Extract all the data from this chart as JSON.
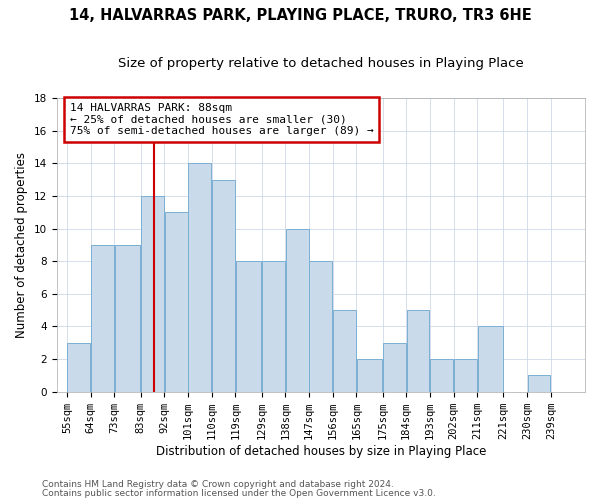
{
  "title": "14, HALVARRAS PARK, PLAYING PLACE, TRURO, TR3 6HE",
  "subtitle": "Size of property relative to detached houses in Playing Place",
  "xlabel": "Distribution of detached houses by size in Playing Place",
  "ylabel": "Number of detached properties",
  "footnote1": "Contains HM Land Registry data © Crown copyright and database right 2024.",
  "footnote2": "Contains public sector information licensed under the Open Government Licence v3.0.",
  "annotation_line1": "14 HALVARRAS PARK: 88sqm",
  "annotation_line2": "← 25% of detached houses are smaller (30)",
  "annotation_line3": "75% of semi-detached houses are larger (89) →",
  "bar_edges": [
    55,
    64,
    73,
    83,
    92,
    101,
    110,
    119,
    129,
    138,
    147,
    156,
    165,
    175,
    184,
    193,
    202,
    211,
    221,
    230,
    239
  ],
  "bar_heights": [
    3,
    9,
    9,
    12,
    11,
    14,
    13,
    8,
    8,
    10,
    8,
    5,
    2,
    3,
    5,
    2,
    2,
    4,
    0,
    1
  ],
  "bar_color": "#c9daea",
  "bar_edgecolor": "#7bafd4",
  "ref_line_x": 88,
  "ylim": [
    0,
    18
  ],
  "yticks": [
    0,
    2,
    4,
    6,
    8,
    10,
    12,
    14,
    16,
    18
  ],
  "box_color": "#cc0000",
  "title_fontsize": 10.5,
  "subtitle_fontsize": 9.5,
  "axis_label_fontsize": 8.5,
  "ylabel_fontsize": 8.5,
  "tick_fontsize": 7.5,
  "footnote_fontsize": 6.5
}
